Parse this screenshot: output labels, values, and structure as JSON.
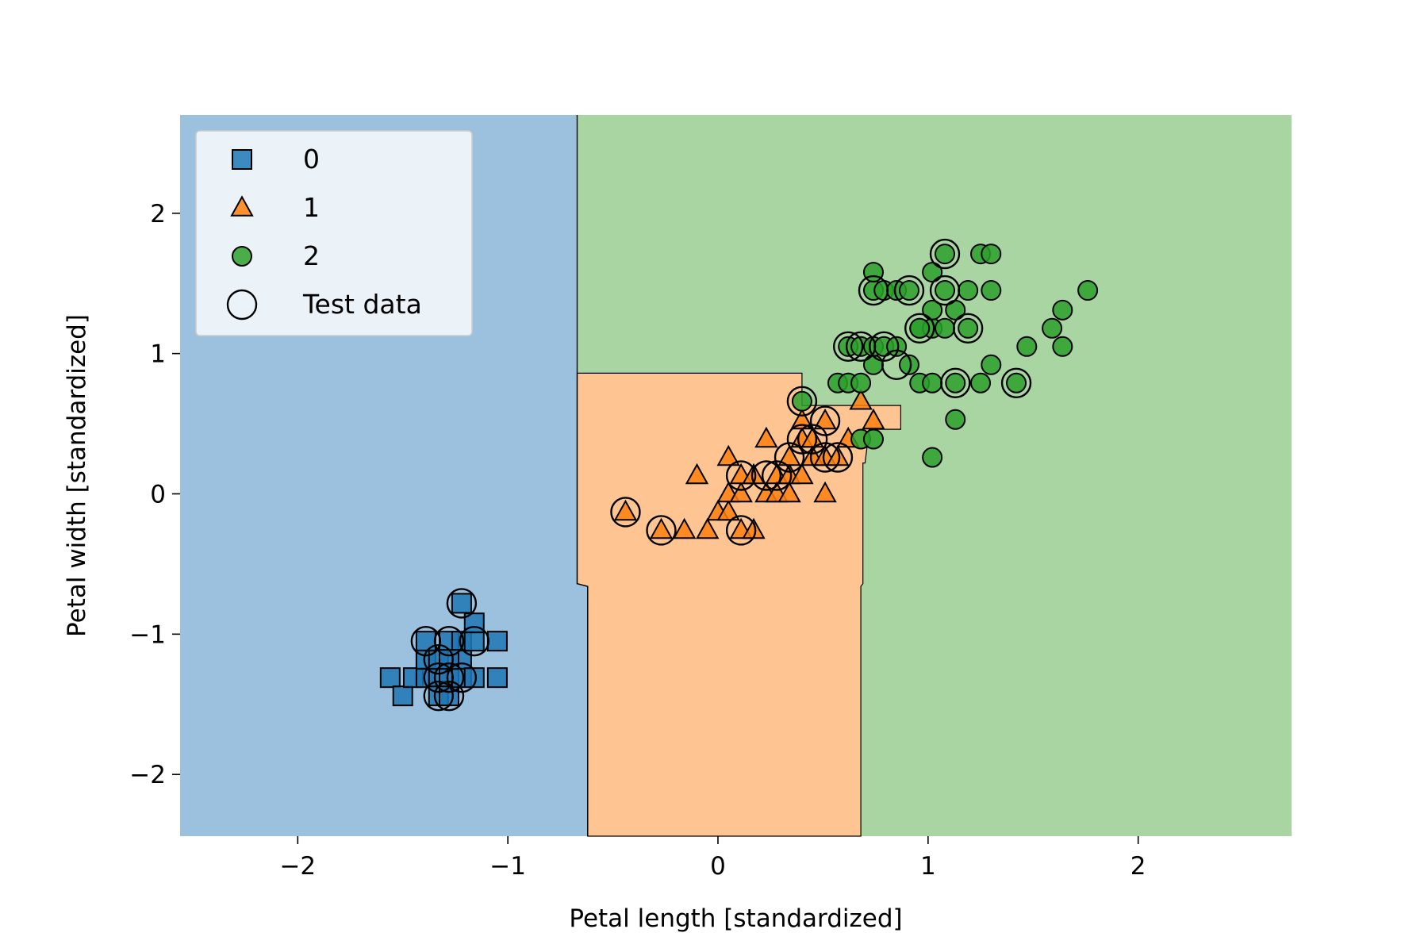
{
  "chart_data": {
    "type": "scatter",
    "title": "",
    "xlabel": "Petal length [standardized]",
    "ylabel": "Petal width [standardized]",
    "xlim": [
      -2.56,
      2.73
    ],
    "ylim": [
      -2.44,
      2.7
    ],
    "xticks": [
      -2,
      -1,
      0,
      1,
      2
    ],
    "yticks": [
      -2,
      -1,
      0,
      1,
      2
    ],
    "xtick_labels": [
      "−2",
      "−1",
      "0",
      "1",
      "2"
    ],
    "ytick_labels": [
      "−2",
      "−1",
      "0",
      "1",
      "2"
    ],
    "grid": false,
    "legend_position": "top-left",
    "legend": [
      {
        "label": "0",
        "marker": "square",
        "color": "#1f77b4"
      },
      {
        "label": "1",
        "marker": "triangle",
        "color": "#ff7f0e"
      },
      {
        "label": "2",
        "marker": "circle",
        "color": "#2ca02c"
      },
      {
        "label": "Test data",
        "marker": "open-circle",
        "color": "#000000"
      }
    ],
    "regions": {
      "class0_color": "#9bc1de",
      "class1_color": "#fec592",
      "class2_color": "#a8d5a2",
      "boundary_0_1": [
        [
          -0.67,
          2.7
        ],
        [
          -0.67,
          0.86
        ],
        [
          -0.67,
          -0.64
        ],
        [
          -0.62,
          -0.66
        ],
        [
          -0.62,
          -2.44
        ]
      ],
      "polygon_class1": [
        [
          -0.67,
          0.86
        ],
        [
          0.4,
          0.86
        ],
        [
          0.4,
          0.63
        ],
        [
          0.87,
          0.63
        ],
        [
          0.87,
          0.46
        ],
        [
          0.72,
          0.46
        ],
        [
          0.7,
          0.22
        ],
        [
          0.69,
          0.22
        ],
        [
          0.69,
          -0.64
        ],
        [
          0.68,
          -0.66
        ],
        [
          0.68,
          -2.44
        ],
        [
          -0.62,
          -2.44
        ],
        [
          -0.62,
          -0.66
        ],
        [
          -0.67,
          -0.64
        ]
      ]
    },
    "series": [
      {
        "name": "0",
        "marker": "square",
        "color": "#1f77b4",
        "points": [
          [
            -1.56,
            -1.31
          ],
          [
            -1.5,
            -1.44
          ],
          [
            -1.45,
            -1.31
          ],
          [
            -1.39,
            -1.31
          ],
          [
            -1.39,
            -1.18
          ],
          [
            -1.33,
            -1.31
          ],
          [
            -1.33,
            -1.18
          ],
          [
            -1.33,
            -1.44
          ],
          [
            -1.28,
            -1.31
          ],
          [
            -1.28,
            -1.05
          ],
          [
            -1.28,
            -1.44
          ],
          [
            -1.22,
            -1.31
          ],
          [
            -1.22,
            -1.18
          ],
          [
            -1.22,
            -1.05
          ],
          [
            -1.22,
            -0.78
          ],
          [
            -1.16,
            -1.31
          ],
          [
            -1.16,
            -1.05
          ],
          [
            -1.16,
            -0.92
          ],
          [
            -1.05,
            -1.05
          ],
          [
            -1.05,
            -1.31
          ],
          [
            -1.39,
            -1.05
          ],
          [
            -1.28,
            -1.18
          ]
        ]
      },
      {
        "name": "1",
        "marker": "triangle",
        "color": "#ff7f0e",
        "points": [
          [
            -0.44,
            -0.13
          ],
          [
            -0.27,
            -0.26
          ],
          [
            -0.16,
            -0.26
          ],
          [
            -0.1,
            0.13
          ],
          [
            -0.05,
            -0.26
          ],
          [
            0.0,
            -0.13
          ],
          [
            0.05,
            -0.13
          ],
          [
            0.05,
            0.0
          ],
          [
            0.05,
            0.26
          ],
          [
            0.11,
            0.0
          ],
          [
            0.11,
            0.13
          ],
          [
            0.11,
            -0.26
          ],
          [
            0.17,
            -0.26
          ],
          [
            0.17,
            0.13
          ],
          [
            0.23,
            0.0
          ],
          [
            0.23,
            0.39
          ],
          [
            0.28,
            0.13
          ],
          [
            0.28,
            0.0
          ],
          [
            0.34,
            0.13
          ],
          [
            0.34,
            0.26
          ],
          [
            0.34,
            0.0
          ],
          [
            0.4,
            0.13
          ],
          [
            0.4,
            0.39
          ],
          [
            0.4,
            0.52
          ],
          [
            0.45,
            0.26
          ],
          [
            0.45,
            0.39
          ],
          [
            0.51,
            0.26
          ],
          [
            0.51,
            0.52
          ],
          [
            0.51,
            0.0
          ],
          [
            0.57,
            0.26
          ],
          [
            0.68,
            0.66
          ],
          [
            0.74,
            0.52
          ],
          [
            0.62,
            0.39
          ]
        ]
      },
      {
        "name": "2",
        "marker": "circle",
        "color": "#2ca02c",
        "points": [
          [
            0.4,
            0.66
          ],
          [
            0.57,
            0.79
          ],
          [
            0.62,
            0.79
          ],
          [
            0.62,
            1.05
          ],
          [
            0.68,
            0.79
          ],
          [
            0.68,
            1.05
          ],
          [
            0.68,
            0.39
          ],
          [
            0.74,
            0.92
          ],
          [
            0.74,
            1.05
          ],
          [
            0.74,
            1.45
          ],
          [
            0.74,
            1.58
          ],
          [
            0.74,
            0.39
          ],
          [
            0.79,
            1.45
          ],
          [
            0.79,
            1.05
          ],
          [
            0.85,
            1.05
          ],
          [
            0.85,
            1.45
          ],
          [
            0.91,
            0.92
          ],
          [
            0.91,
            1.45
          ],
          [
            0.96,
            1.18
          ],
          [
            0.96,
            0.79
          ],
          [
            1.02,
            1.18
          ],
          [
            1.02,
            1.31
          ],
          [
            1.02,
            1.58
          ],
          [
            1.02,
            0.79
          ],
          [
            1.02,
            0.26
          ],
          [
            1.08,
            1.71
          ],
          [
            1.08,
            1.45
          ],
          [
            1.08,
            1.18
          ],
          [
            1.13,
            1.31
          ],
          [
            1.13,
            0.79
          ],
          [
            1.13,
            0.53
          ],
          [
            1.19,
            1.45
          ],
          [
            1.19,
            1.18
          ],
          [
            1.25,
            1.71
          ],
          [
            1.25,
            0.79
          ],
          [
            1.3,
            1.71
          ],
          [
            1.3,
            1.45
          ],
          [
            1.3,
            0.92
          ],
          [
            1.42,
            0.79
          ],
          [
            1.47,
            1.05
          ],
          [
            1.59,
            1.18
          ],
          [
            1.64,
            1.31
          ],
          [
            1.64,
            1.05
          ],
          [
            1.76,
            1.45
          ],
          [
            0.96,
            1.18
          ]
        ]
      },
      {
        "name": "Test data",
        "marker": "open-circle",
        "color": "#000000",
        "points": [
          [
            -1.22,
            -0.78
          ],
          [
            -1.39,
            -1.05
          ],
          [
            -1.28,
            -1.05
          ],
          [
            -1.16,
            -1.05
          ],
          [
            -1.33,
            -1.18
          ],
          [
            -1.33,
            -1.31
          ],
          [
            -1.28,
            -1.31
          ],
          [
            -1.22,
            -1.31
          ],
          [
            -1.33,
            -1.44
          ],
          [
            -1.28,
            -1.44
          ],
          [
            -0.44,
            -0.13
          ],
          [
            -0.27,
            -0.26
          ],
          [
            0.11,
            -0.26
          ],
          [
            0.11,
            0.13
          ],
          [
            0.23,
            0.13
          ],
          [
            0.28,
            0.13
          ],
          [
            0.34,
            0.26
          ],
          [
            0.4,
            0.39
          ],
          [
            0.45,
            0.39
          ],
          [
            0.51,
            0.52
          ],
          [
            0.51,
            0.26
          ],
          [
            0.57,
            0.26
          ],
          [
            0.4,
            0.66
          ],
          [
            0.62,
            1.05
          ],
          [
            0.68,
            1.05
          ],
          [
            0.79,
            1.05
          ],
          [
            0.85,
            0.92
          ],
          [
            0.74,
            1.45
          ],
          [
            0.91,
            1.45
          ],
          [
            0.96,
            1.18
          ],
          [
            1.08,
            1.71
          ],
          [
            1.08,
            1.45
          ],
          [
            1.19,
            1.18
          ],
          [
            1.13,
            0.79
          ],
          [
            1.42,
            0.79
          ]
        ]
      }
    ]
  }
}
